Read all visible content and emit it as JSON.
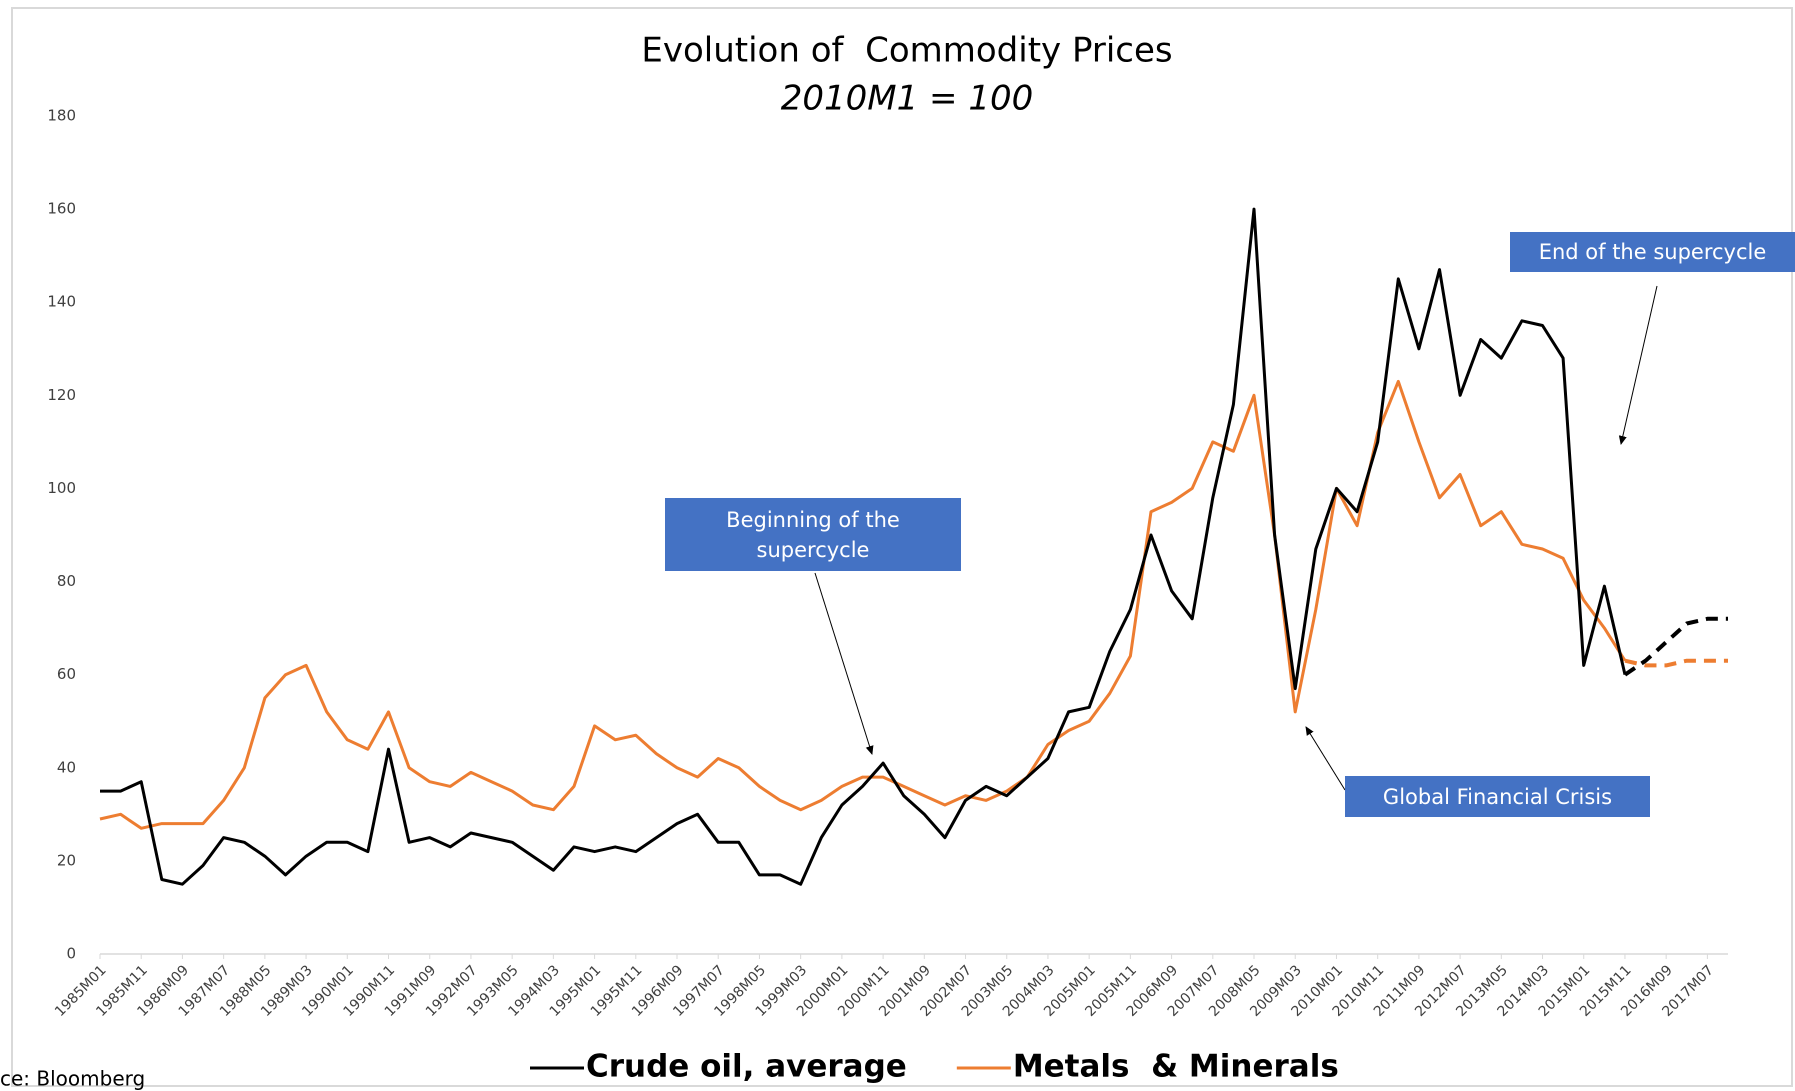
{
  "chart_data": {
    "type": "line",
    "title": "Evolution of  Commodity Prices",
    "subtitle": "2010M1 = 100",
    "source": "ce: Bloomberg",
    "categories": [
      "1985M01",
      null,
      "1985M11",
      null,
      "1986M09",
      null,
      "1987M07",
      null,
      "1988M05",
      null,
      "1989M03",
      null,
      "1990M01",
      null,
      "1990M11",
      null,
      "1991M09",
      null,
      "1992M07",
      null,
      "1993M05",
      null,
      "1994M03",
      null,
      "1995M01",
      null,
      "1995M11",
      null,
      "1996M09",
      null,
      "1997M07",
      null,
      "1998M05",
      null,
      "1999M03",
      null,
      "2000M01",
      null,
      "2000M11",
      null,
      "2001M09",
      null,
      "2002M07",
      null,
      "2003M05",
      null,
      "2004M03",
      null,
      "2005M01",
      null,
      "2005M11",
      null,
      "2006M09",
      null,
      "2007M07",
      null,
      "2008M05",
      null,
      "2009M03",
      null,
      "2010M01",
      null,
      "2010M11",
      null,
      "2011M09",
      null,
      "2012M07",
      null,
      "2013M05",
      null,
      "2014M03",
      null,
      "2015M01",
      null,
      "2015M11",
      null,
      "2016M09",
      null,
      "2017M07",
      null
    ],
    "series": [
      {
        "name": "Crude oil, average",
        "color": "#000000",
        "dash_from": 74,
        "values": [
          35,
          35,
          37,
          16,
          15,
          19,
          25,
          24,
          21,
          17,
          21,
          24,
          24,
          22,
          44,
          24,
          25,
          23,
          26,
          25,
          24,
          21,
          18,
          23,
          22,
          23,
          22,
          25,
          28,
          30,
          24,
          24,
          17,
          17,
          15,
          25,
          32,
          36,
          41,
          34,
          30,
          25,
          33,
          36,
          34,
          38,
          42,
          52,
          53,
          65,
          74,
          90,
          78,
          72,
          98,
          118,
          160,
          90,
          57,
          87,
          100,
          95,
          110,
          145,
          130,
          147,
          120,
          132,
          128,
          136,
          135,
          128,
          62,
          79,
          60,
          63,
          67,
          71,
          72,
          72
        ]
      },
      {
        "name": "Metals  & Minerals",
        "color": "#ed7d31",
        "dash_from": 74,
        "values": [
          29,
          30,
          27,
          28,
          28,
          28,
          33,
          40,
          55,
          60,
          62,
          52,
          46,
          44,
          52,
          40,
          37,
          36,
          39,
          37,
          35,
          32,
          31,
          36,
          49,
          46,
          47,
          43,
          40,
          38,
          42,
          40,
          36,
          33,
          31,
          33,
          36,
          38,
          38,
          36,
          34,
          32,
          34,
          33,
          35,
          38,
          45,
          48,
          50,
          56,
          64,
          95,
          97,
          100,
          110,
          108,
          120,
          90,
          52,
          74,
          100,
          92,
          112,
          123,
          110,
          98,
          103,
          92,
          95,
          88,
          87,
          85,
          76,
          70,
          63,
          62,
          62,
          63,
          63,
          63
        ]
      }
    ],
    "ylim": [
      0,
      180
    ],
    "yticks": [
      0,
      20,
      40,
      60,
      80,
      100,
      120,
      140,
      160,
      180
    ],
    "grid": false,
    "annotations": [
      {
        "text": "Beginning of the supercycle"
      },
      {
        "text": "End of the supercycle"
      },
      {
        "text": "Global Financial Crisis"
      }
    ]
  }
}
